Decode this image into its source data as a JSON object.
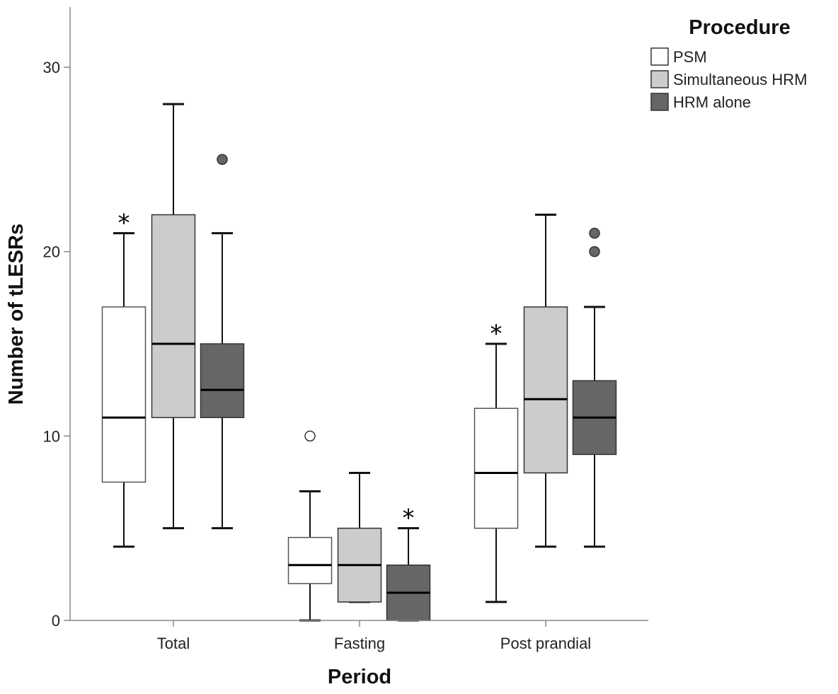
{
  "chart_data": {
    "type": "boxplot",
    "xlabel": "Period",
    "ylabel": "Number of tLESRs",
    "ylim": [
      0,
      33
    ],
    "yticks": [
      0,
      10,
      20,
      30
    ],
    "grid": false,
    "categories": [
      "Total",
      "Fasting",
      "Post prandial"
    ],
    "legend": {
      "title": "Procedure",
      "position": "top-right",
      "entries": [
        "PSM",
        "Simultaneous HRM",
        "HRM alone"
      ]
    },
    "series": [
      {
        "name": "PSM",
        "color": "#ffffff",
        "boxes": [
          {
            "category": "Total",
            "whisker_low": 4,
            "q1": 7.5,
            "median": 11,
            "q3": 17,
            "whisker_high": 21,
            "outliers": [],
            "annotation": "*"
          },
          {
            "category": "Fasting",
            "whisker_low": 0,
            "q1": 2,
            "median": 3,
            "q3": 4.5,
            "whisker_high": 7,
            "outliers": [
              10
            ],
            "annotation": ""
          },
          {
            "category": "Post prandial",
            "whisker_low": 1,
            "q1": 5,
            "median": 8,
            "q3": 11.5,
            "whisker_high": 15,
            "outliers": [],
            "annotation": "*"
          }
        ]
      },
      {
        "name": "Simultaneous HRM",
        "color": "#cccccc",
        "boxes": [
          {
            "category": "Total",
            "whisker_low": 5,
            "q1": 11,
            "median": 15,
            "q3": 22,
            "whisker_high": 28,
            "outliers": [],
            "annotation": ""
          },
          {
            "category": "Fasting",
            "whisker_low": 1,
            "q1": 1,
            "median": 3,
            "q3": 5,
            "whisker_high": 8,
            "outliers": [],
            "annotation": ""
          },
          {
            "category": "Post prandial",
            "whisker_low": 4,
            "q1": 8,
            "median": 12,
            "q3": 17,
            "whisker_high": 22,
            "outliers": [],
            "annotation": ""
          }
        ]
      },
      {
        "name": "HRM alone",
        "color": "#666666",
        "boxes": [
          {
            "category": "Total",
            "whisker_low": 5,
            "q1": 11,
            "median": 12.5,
            "q3": 15,
            "whisker_high": 21,
            "outliers": [
              25
            ],
            "annotation": ""
          },
          {
            "category": "Fasting",
            "whisker_low": 0,
            "q1": 0,
            "median": 1.5,
            "q3": 3,
            "whisker_high": 5,
            "outliers": [],
            "annotation": "*"
          },
          {
            "category": "Post prandial",
            "whisker_low": 4,
            "q1": 9,
            "median": 11,
            "q3": 13,
            "whisker_high": 17,
            "outliers": [
              20,
              21
            ],
            "annotation": ""
          }
        ]
      }
    ]
  }
}
